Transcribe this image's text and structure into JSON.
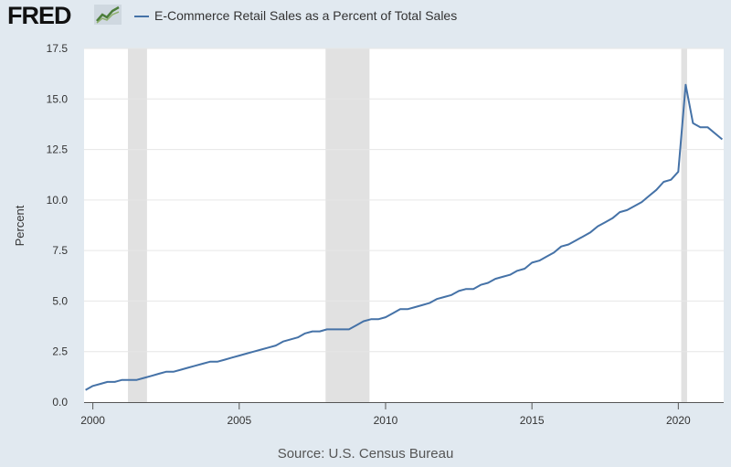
{
  "header": {
    "logo_text": "FRED",
    "logo_icon": "line-chart-icon",
    "legend_label": "E-Commerce Retail Sales as a Percent of Total Sales"
  },
  "colors": {
    "background": "#e1e9f0",
    "plot_background": "#ffffff",
    "series": "#4572a7",
    "recession": "#e1e1e1",
    "grid": "#e6e6e6"
  },
  "footer": {
    "source": "Source: U.S. Census Bureau"
  },
  "chart_data": {
    "type": "line",
    "title": "E-Commerce Retail Sales as a Percent of Total Sales",
    "xlabel": "",
    "ylabel": "Percent",
    "xlim": [
      1999.7,
      2021.55
    ],
    "ylim": [
      0,
      17.5
    ],
    "x_ticks": [
      2000,
      2005,
      2010,
      2015,
      2020
    ],
    "x_tick_labels": [
      "2000",
      "2005",
      "2010",
      "2015",
      "2020"
    ],
    "y_ticks": [
      0,
      2.5,
      5,
      7.5,
      10,
      12.5,
      15,
      17.5
    ],
    "y_tick_labels": [
      "0.0",
      "2.5",
      "5.0",
      "7.5",
      "10.0",
      "12.5",
      "15.0",
      "17.5"
    ],
    "grid": true,
    "recessions": [
      [
        2001.2,
        2001.85
      ],
      [
        2007.95,
        2009.45
      ],
      [
        2020.1,
        2020.3
      ]
    ],
    "series": [
      {
        "name": "E-Commerce Retail Sales as a Percent of Total Sales",
        "x": [
          1999.75,
          2000.0,
          2000.25,
          2000.5,
          2000.75,
          2001.0,
          2001.25,
          2001.5,
          2001.75,
          2002.0,
          2002.25,
          2002.5,
          2002.75,
          2003.0,
          2003.25,
          2003.5,
          2003.75,
          2004.0,
          2004.25,
          2004.5,
          2004.75,
          2005.0,
          2005.25,
          2005.5,
          2005.75,
          2006.0,
          2006.25,
          2006.5,
          2006.75,
          2007.0,
          2007.25,
          2007.5,
          2007.75,
          2008.0,
          2008.25,
          2008.5,
          2008.75,
          2009.0,
          2009.25,
          2009.5,
          2009.75,
          2010.0,
          2010.25,
          2010.5,
          2010.75,
          2011.0,
          2011.25,
          2011.5,
          2011.75,
          2012.0,
          2012.25,
          2012.5,
          2012.75,
          2013.0,
          2013.25,
          2013.5,
          2013.75,
          2014.0,
          2014.25,
          2014.5,
          2014.75,
          2015.0,
          2015.25,
          2015.5,
          2015.75,
          2016.0,
          2016.25,
          2016.5,
          2016.75,
          2017.0,
          2017.25,
          2017.5,
          2017.75,
          2018.0,
          2018.25,
          2018.5,
          2018.75,
          2019.0,
          2019.25,
          2019.5,
          2019.75,
          2020.0,
          2020.25,
          2020.5,
          2020.75,
          2021.0,
          2021.25,
          2021.5
        ],
        "values": [
          0.6,
          0.8,
          0.9,
          1.0,
          1.0,
          1.1,
          1.1,
          1.1,
          1.2,
          1.3,
          1.4,
          1.5,
          1.5,
          1.6,
          1.7,
          1.8,
          1.9,
          2.0,
          2.0,
          2.1,
          2.2,
          2.3,
          2.4,
          2.5,
          2.6,
          2.7,
          2.8,
          3.0,
          3.1,
          3.2,
          3.4,
          3.5,
          3.5,
          3.6,
          3.6,
          3.6,
          3.6,
          3.8,
          4.0,
          4.1,
          4.1,
          4.2,
          4.4,
          4.6,
          4.6,
          4.7,
          4.8,
          4.9,
          5.1,
          5.2,
          5.3,
          5.5,
          5.6,
          5.6,
          5.8,
          5.9,
          6.1,
          6.2,
          6.3,
          6.5,
          6.6,
          6.9,
          7.0,
          7.2,
          7.4,
          7.7,
          7.8,
          8.0,
          8.2,
          8.4,
          8.7,
          8.9,
          9.1,
          9.4,
          9.5,
          9.7,
          9.9,
          10.2,
          10.5,
          10.9,
          11.0,
          11.4,
          15.7,
          13.8,
          13.6,
          13.6,
          13.3,
          13.0
        ]
      }
    ]
  }
}
